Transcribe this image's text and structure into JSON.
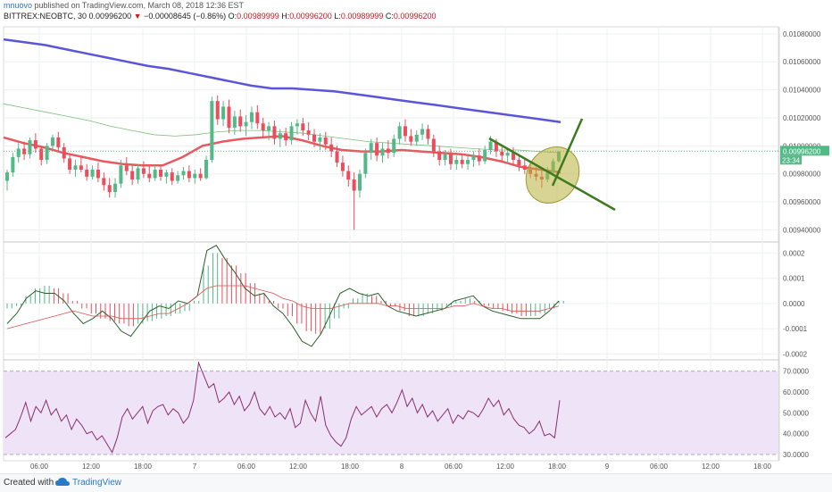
{
  "header": {
    "author": "mnuovo",
    "published_text": "published on TradingView.com, March 08, 2018 12:36 EST",
    "symbol": "BITTREX:NEOBTC, 30",
    "last": "0.00996200",
    "arrow": "▼",
    "change": "−0.00008645 (−0.86%)",
    "o_label": "O:",
    "o_value": "0.00989999",
    "h_label": "H:",
    "h_value": "0.00996200",
    "l_label": "L:",
    "l_value": "0.00989999",
    "c_label": "C:",
    "c_value": "0.00996200"
  },
  "footer": {
    "created_with": "Created with",
    "brand": "TradingView"
  },
  "colors": {
    "up": "#53b987",
    "down": "#eb4d5c",
    "ma_slow": "#5b55d9",
    "ma_fast": "#e8595e",
    "ma_thin": "#7cbf7c",
    "trend": "#3e7a1f",
    "ellipse": "#b8b23c",
    "rsi": "#8b2f6b",
    "rsi_band": "#efe3f8",
    "price_label": "#53b987"
  },
  "chart_data": [
    {
      "type": "candlestick",
      "panel": "price",
      "y_ticks": [
        "0.01080000",
        "0.01060000",
        "0.01040000",
        "0.01020000",
        "0.01000000",
        "0.00980000",
        "0.00960000",
        "0.00940000"
      ],
      "ylim": [
        0.00932,
        0.01085
      ],
      "x_ticks": [
        "06:00",
        "12:00",
        "18:00",
        "7",
        "06:00",
        "12:00",
        "18:00",
        "8",
        "06:00",
        "12:00",
        "18:00",
        "9",
        "06:00",
        "12:00",
        "18:00"
      ],
      "last_price_label": "0.00996200",
      "countdown_label": "23:34",
      "candles": [
        [
          0.00975,
          0.00983,
          0.00968,
          0.00981
        ],
        [
          0.00981,
          0.00995,
          0.00978,
          0.00992
        ],
        [
          0.00992,
          0.01002,
          0.00988,
          0.00998
        ],
        [
          0.00998,
          0.01003,
          0.0099,
          0.00994
        ],
        [
          0.00994,
          0.01006,
          0.00991,
          0.01004
        ],
        [
          0.01004,
          0.01009,
          0.00995,
          0.00998
        ],
        [
          0.00998,
          0.01,
          0.00986,
          0.0099
        ],
        [
          0.0099,
          0.01002,
          0.00987,
          0.01
        ],
        [
          0.01,
          0.01008,
          0.00997,
          0.01006
        ],
        [
          0.01006,
          0.0101,
          0.00996,
          0.00999
        ],
        [
          0.00999,
          0.01002,
          0.00988,
          0.00991
        ],
        [
          0.00991,
          0.00994,
          0.0098,
          0.00983
        ],
        [
          0.00983,
          0.0099,
          0.00978,
          0.00986
        ],
        [
          0.00986,
          0.00992,
          0.00981,
          0.00983
        ],
        [
          0.00983,
          0.00987,
          0.00975,
          0.00978
        ],
        [
          0.00978,
          0.00986,
          0.00976,
          0.00983
        ],
        [
          0.00983,
          0.00988,
          0.00974,
          0.00977
        ],
        [
          0.00977,
          0.00981,
          0.00968,
          0.00972
        ],
        [
          0.00972,
          0.00977,
          0.00963,
          0.00967
        ],
        [
          0.00967,
          0.00977,
          0.00963,
          0.00973
        ],
        [
          0.00973,
          0.0099,
          0.0097,
          0.00986
        ],
        [
          0.00986,
          0.00992,
          0.00979,
          0.00982
        ],
        [
          0.00982,
          0.00986,
          0.00972,
          0.00976
        ],
        [
          0.00976,
          0.00987,
          0.00973,
          0.00984
        ],
        [
          0.00984,
          0.00989,
          0.00977,
          0.0098
        ],
        [
          0.0098,
          0.00986,
          0.00974,
          0.00977
        ],
        [
          0.00977,
          0.00987,
          0.00975,
          0.00983
        ],
        [
          0.00983,
          0.00986,
          0.00975,
          0.00978
        ],
        [
          0.00978,
          0.00983,
          0.00973,
          0.00981
        ],
        [
          0.00981,
          0.00984,
          0.00972,
          0.00975
        ],
        [
          0.00975,
          0.00982,
          0.00973,
          0.00979
        ],
        [
          0.00979,
          0.00985,
          0.00976,
          0.00982
        ],
        [
          0.00982,
          0.00986,
          0.00974,
          0.00977
        ],
        [
          0.00977,
          0.00983,
          0.00973,
          0.0098
        ],
        [
          0.0098,
          0.00984,
          0.00975,
          0.00977
        ],
        [
          0.00977,
          0.00993,
          0.00976,
          0.0099
        ],
        [
          0.0099,
          0.01035,
          0.00988,
          0.01032
        ],
        [
          0.01032,
          0.01036,
          0.01015,
          0.01019
        ],
        [
          0.01019,
          0.01032,
          0.01014,
          0.01028
        ],
        [
          0.01028,
          0.01033,
          0.01009,
          0.01013
        ],
        [
          0.01013,
          0.01025,
          0.01008,
          0.01021
        ],
        [
          0.01021,
          0.01026,
          0.0101,
          0.01014
        ],
        [
          0.01014,
          0.01022,
          0.01007,
          0.01017
        ],
        [
          0.01017,
          0.01028,
          0.01012,
          0.01024
        ],
        [
          0.01024,
          0.01029,
          0.01012,
          0.01016
        ],
        [
          0.01016,
          0.0102,
          0.01006,
          0.01011
        ],
        [
          0.01011,
          0.01017,
          0.01004,
          0.01014
        ],
        [
          0.01014,
          0.01018,
          0.01001,
          0.01005
        ],
        [
          0.01005,
          0.01012,
          0.00999,
          0.01009
        ],
        [
          0.01009,
          0.01013,
          0.01,
          0.01004
        ],
        [
          0.01004,
          0.01017,
          0.01001,
          0.01014
        ],
        [
          0.01014,
          0.01019,
          0.01008,
          0.01016
        ],
        [
          0.01016,
          0.0102,
          0.01007,
          0.01011
        ],
        [
          0.01011,
          0.01017,
          0.01004,
          0.01008
        ],
        [
          0.01008,
          0.01012,
          0.00999,
          0.01003
        ],
        [
          0.01003,
          0.01009,
          0.00997,
          0.01006
        ],
        [
          0.01006,
          0.0101,
          0.00997,
          0.01001
        ],
        [
          0.01001,
          0.01006,
          0.00992,
          0.00996
        ],
        [
          0.00996,
          0.01,
          0.00985,
          0.00988
        ],
        [
          0.00988,
          0.00993,
          0.00978,
          0.00982
        ],
        [
          0.00982,
          0.00986,
          0.00971,
          0.00976
        ],
        [
          0.00976,
          0.00981,
          0.0094,
          0.00968
        ],
        [
          0.00968,
          0.00983,
          0.00963,
          0.0098
        ],
        [
          0.0098,
          0.00998,
          0.00977,
          0.00995
        ],
        [
          0.00995,
          0.01005,
          0.0099,
          0.01002
        ],
        [
          0.01002,
          0.01006,
          0.00989,
          0.00993
        ],
        [
          0.00993,
          0.01002,
          0.00988,
          0.00998
        ],
        [
          0.00998,
          0.01004,
          0.00991,
          0.00995
        ],
        [
          0.00995,
          0.01008,
          0.00992,
          0.01005
        ],
        [
          0.01005,
          0.01017,
          0.01001,
          0.01014
        ],
        [
          0.01014,
          0.01019,
          0.01003,
          0.01007
        ],
        [
          0.01007,
          0.01012,
          0.01,
          0.01003
        ],
        [
          0.01003,
          0.01011,
          0.01,
          0.01008
        ],
        [
          0.01008,
          0.01016,
          0.01004,
          0.01012
        ],
        [
          0.01012,
          0.01015,
          0.01001,
          0.01005
        ],
        [
          0.01005,
          0.01008,
          0.00992,
          0.00996
        ],
        [
          0.00996,
          0.01,
          0.00986,
          0.0099
        ],
        [
          0.0099,
          0.00997,
          0.00986,
          0.00994
        ],
        [
          0.00994,
          0.00998,
          0.00983,
          0.00987
        ],
        [
          0.00987,
          0.00993,
          0.00983,
          0.0099
        ],
        [
          0.0099,
          0.00994,
          0.00984,
          0.00987
        ],
        [
          0.00987,
          0.00993,
          0.00983,
          0.0099
        ],
        [
          0.0099,
          0.00996,
          0.00985,
          0.00993
        ],
        [
          0.00993,
          0.00998,
          0.00986,
          0.00989
        ],
        [
          0.00989,
          0.01,
          0.00987,
          0.00997
        ],
        [
          0.00997,
          0.01007,
          0.00994,
          0.01003
        ],
        [
          0.01003,
          0.01005,
          0.00992,
          0.00996
        ],
        [
          0.00996,
          0.00999,
          0.00988,
          0.00993
        ],
        [
          0.00993,
          0.00998,
          0.00987,
          0.00995
        ],
        [
          0.00995,
          0.00999,
          0.00986,
          0.0099
        ],
        [
          0.0099,
          0.00994,
          0.00982,
          0.00986
        ],
        [
          0.00986,
          0.0099,
          0.0098,
          0.00983
        ],
        [
          0.00983,
          0.00988,
          0.00977,
          0.0098
        ],
        [
          0.0098,
          0.00985,
          0.00975,
          0.00978
        ],
        [
          0.00978,
          0.00982,
          0.0097,
          0.00976
        ],
        [
          0.00976,
          0.00985,
          0.00974,
          0.00981
        ],
        [
          0.00981,
          0.00991,
          0.00979,
          0.00989
        ],
        [
          0.00989,
          0.00996,
          0.00988,
          0.00996
        ]
      ],
      "overlays": [
        {
          "name": "MA slow",
          "color": "#5b55d9",
          "values": [
            0.01076,
            0.01074,
            0.01072,
            0.01069,
            0.01066,
            0.01063,
            0.0106,
            0.01057,
            0.01055,
            0.01052,
            0.01049,
            0.01046,
            0.01043,
            0.01041,
            0.01041,
            0.0104,
            0.01039,
            0.01037,
            0.01035,
            0.01033,
            0.01031,
            0.01029,
            0.01027,
            0.01025,
            0.01023,
            0.01021,
            0.01019,
            0.01017
          ]
        },
        {
          "name": "MA fast",
          "color": "#e8595e",
          "values": [
            0.01006,
            0.01002,
            0.00999,
            0.00995,
            0.00992,
            0.00989,
            0.00987,
            0.00986,
            0.00986,
            0.00992,
            0.01,
            0.01003,
            0.01005,
            0.01006,
            0.01007,
            0.01004,
            0.01,
            0.00997,
            0.00996,
            0.00996,
            0.00997,
            0.00996,
            0.00995,
            0.00994,
            0.00992,
            0.00989,
            0.00985,
            0.00983,
            0.00981
          ]
        },
        {
          "name": "MA thin",
          "color": "#7cbf7c",
          "values": [
            0.0103,
            0.01027,
            0.01024,
            0.01021,
            0.01018,
            0.01014,
            0.01011,
            0.01008,
            0.01007,
            0.01008,
            0.0101,
            0.01011,
            0.01011,
            0.0101,
            0.01009,
            0.01007,
            0.01005,
            0.01003,
            0.01002,
            0.01001,
            0.01,
            0.00999,
            0.00998,
            0.00997,
            0.00997,
            0.00996,
            0.00995
          ]
        }
      ],
      "annotations": {
        "trend_down": [
          [
            0.01007,
            0.00958
          ]
        ],
        "trend_up": [
          [
            0.00972,
            0.0102
          ]
        ],
        "ellipse": true
      }
    },
    {
      "type": "histogram+line",
      "panel": "macd",
      "y_ticks": [
        "0.0002",
        "0.0001",
        "0.0000",
        "-0.0001",
        "-0.0002"
      ],
      "ylim": [
        -0.00022,
        0.00024
      ],
      "histogram": [
        -2e-05,
        -1e-05,
        3e-05,
        6e-05,
        7e-05,
        6e-05,
        4e-05,
        1e-05,
        -2e-05,
        -4e-05,
        -6e-05,
        -7e-05,
        -8e-05,
        -9e-05,
        -8e-05,
        -7e-05,
        -6e-05,
        -5e-05,
        -4e-05,
        -3e-05,
        1e-05,
        0.00015,
        0.0002,
        0.00018,
        0.00015,
        0.00012,
        8e-05,
        4e-05,
        1e-05,
        -2e-05,
        -5e-05,
        -8e-05,
        -0.00011,
        -0.00012,
        -0.0001,
        -6e-05,
        -2e-05,
        2e-05,
        4e-05,
        3e-05,
        1e-05,
        -1e-05,
        -3e-05,
        -5e-05,
        -5e-05,
        -4e-05,
        -3e-05,
        -1e-05,
        1e-05,
        2e-05,
        1e-05,
        -1e-05,
        -2e-05,
        -3e-05,
        -4e-05,
        -5e-05,
        -5e-05,
        -4e-05,
        -2e-05,
        1e-05
      ],
      "macd_line": [
        -8e-05,
        -4e-05,
        2e-05,
        5e-05,
        4e-05,
        4e-05,
        1e-05,
        -4e-05,
        -8e-05,
        -6e-05,
        -3e-05,
        -6e-05,
        -0.00011,
        -0.00013,
        -8e-05,
        -3e-05,
        -1e-05,
        -2e-05,
        1e-05,
        0.0,
        3e-05,
        0.00021,
        0.00023,
        0.00017,
        0.00012,
        6e-05,
        3e-05,
        4e-05,
        -1e-05,
        -4e-05,
        -9e-05,
        -0.00015,
        -0.00017,
        -0.00012,
        -4e-05,
        4e-05,
        6e-05,
        4e-05,
        3e-05,
        4e-05,
        -1e-05,
        -3e-05,
        -4e-05,
        -5e-05,
        -4e-05,
        -3e-05,
        -2e-05,
        1e-05,
        2e-05,
        3e-05,
        -1e-05,
        -3e-05,
        -4e-05,
        -5e-05,
        -6e-05,
        -6e-05,
        -6e-05,
        -3e-05,
        1e-05
      ],
      "signal_line": [
        -0.0001,
        -9e-05,
        -8e-05,
        -7e-05,
        -6e-05,
        -5e-05,
        -4e-05,
        -3e-05,
        -4e-05,
        -5e-05,
        -5e-05,
        -5e-05,
        -6e-05,
        -6e-05,
        -6e-05,
        -5e-05,
        -4e-05,
        -4e-05,
        -2e-05,
        0.0,
        3e-05,
        6e-05,
        7e-05,
        7e-05,
        7e-05,
        7e-05,
        6e-05,
        5e-05,
        4e-05,
        2e-05,
        1e-05,
        -1e-05,
        -2e-05,
        -2e-05,
        -2e-05,
        -1e-05,
        0.0,
        0.0,
        0.0,
        0.0,
        -1e-05,
        -1e-05,
        -2e-05,
        -2e-05,
        -2e-05,
        -2e-05,
        -2e-05,
        -1e-05,
        -1e-05,
        0.0,
        -1e-05,
        -2e-05,
        -2e-05,
        -3e-05,
        -3e-05,
        -3e-05,
        -3e-05,
        -2e-05,
        -1e-05
      ]
    },
    {
      "type": "line",
      "panel": "rsi",
      "y_ticks": [
        "70.0000",
        "60.0000",
        "50.0000",
        "40.0000",
        "30.0000"
      ],
      "ylim": [
        27,
        75
      ],
      "band": [
        30,
        70
      ],
      "values": [
        38,
        40,
        42,
        48,
        55,
        46,
        53,
        50,
        56,
        49,
        52,
        46,
        49,
        42,
        47,
        44,
        40,
        41,
        37,
        39,
        35,
        31,
        38,
        48,
        52,
        47,
        50,
        53,
        45,
        51,
        53,
        54,
        49,
        52,
        50,
        45,
        48,
        56,
        74,
        68,
        62,
        64,
        55,
        57,
        60,
        54,
        58,
        51,
        54,
        60,
        52,
        49,
        53,
        48,
        50,
        47,
        52,
        43,
        45,
        56,
        50,
        46,
        58,
        44,
        39,
        36,
        34,
        38,
        47,
        53,
        49,
        51,
        53,
        48,
        52,
        54,
        50,
        55,
        61,
        53,
        57,
        50,
        54,
        48,
        51,
        46,
        49,
        52,
        45,
        49,
        47,
        51,
        50,
        48,
        52,
        57,
        53,
        56,
        49,
        52,
        47,
        44,
        43,
        40,
        42,
        46,
        39,
        40,
        38,
        56
      ]
    }
  ]
}
